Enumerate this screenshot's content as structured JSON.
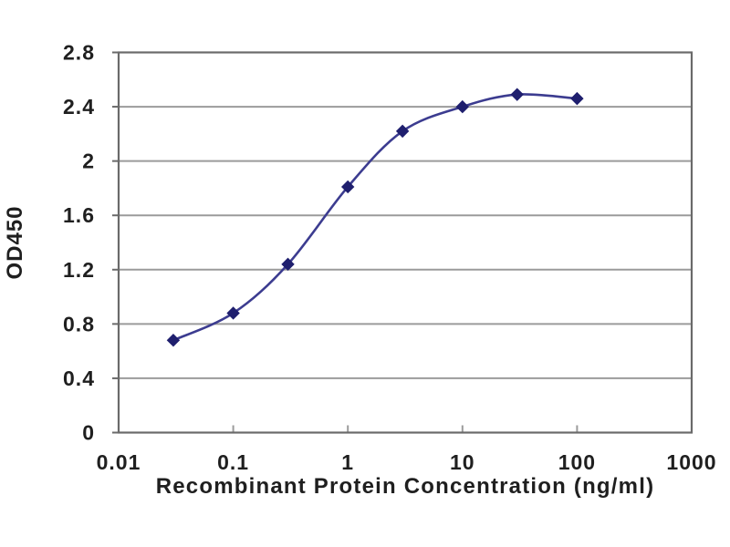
{
  "page": {
    "background": "#ffffff"
  },
  "chart_data": {
    "type": "line",
    "title": "",
    "xlabel": "Recombinant Protein Concentration (ng/ml)",
    "ylabel": "OD450",
    "x_scale": "log",
    "xlim": [
      0.01,
      1000
    ],
    "ylim": [
      0,
      2.8
    ],
    "x": [
      0.03,
      0.1,
      0.3,
      1,
      3,
      10,
      30,
      100
    ],
    "y": [
      0.68,
      0.88,
      1.24,
      1.81,
      2.22,
      2.4,
      2.49,
      2.46
    ],
    "x_ticks": [
      0.01,
      0.1,
      1,
      10,
      100,
      1000
    ],
    "x_tick_labels": [
      "0.01",
      "0.1",
      "1",
      "10",
      "100",
      "1000"
    ],
    "y_ticks": [
      0,
      0.4,
      0.8,
      1.2,
      1.6,
      2,
      2.4,
      2.8
    ],
    "y_tick_labels": [
      "0",
      "0.4",
      "0.8",
      "1.2",
      "1.6",
      "2",
      "2.4",
      "2.8"
    ],
    "grid": "horizontal",
    "legend": "none",
    "marker": "diamond",
    "colors": {
      "line": "#3C3C90",
      "marker": "#1F1F6E",
      "gridline": "#9B9B9B",
      "frame": "#6A6A6A",
      "text": "#1F1F1F",
      "background": "#FFFFFF"
    }
  }
}
